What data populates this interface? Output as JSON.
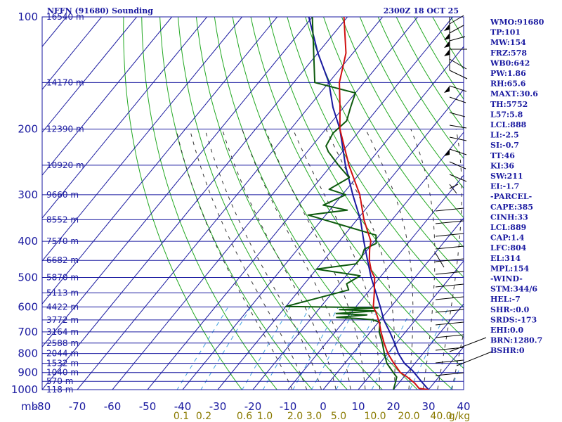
{
  "title_left": "NFFN (91680) Sounding",
  "title_right": "2300Z 18 OCT 25",
  "colors": {
    "grid": "#1a1aa0",
    "dry_adiabat": "#22a822",
    "moist_adiabat": "#333333",
    "mixing_ratio": "#40a0e0",
    "temperature": "#d01010",
    "dewpoint": "#0d5a0d",
    "parcel": "#1a1aa0",
    "axis_text": "#1a1aa0",
    "mixing_text": "#8a7a00"
  },
  "chart_data": {
    "type": "line",
    "title": "NFFN (91680) Sounding",
    "subtitle": "2300Z 18 OCT 25",
    "xlabel": "",
    "ylabel": "mb",
    "xlim": [
      -80,
      40
    ],
    "ylim": [
      1000,
      100
    ],
    "y_scale": "log",
    "grid": true,
    "pressure_ticks": [
      100,
      200,
      300,
      400,
      500,
      600,
      700,
      800,
      900,
      1000
    ],
    "temperature_ticks": [
      -80,
      -70,
      -60,
      -50,
      -40,
      -30,
      -20,
      -10,
      0,
      10,
      20,
      30,
      40
    ],
    "height_labels": [
      {
        "p": 100,
        "label": "16540 m"
      },
      {
        "p": 150,
        "label": "14170 m"
      },
      {
        "p": 200,
        "label": "12390 m"
      },
      {
        "p": 250,
        "label": "10920 m"
      },
      {
        "p": 300,
        "label": "9660 m"
      },
      {
        "p": 350,
        "label": "8552 m"
      },
      {
        "p": 400,
        "label": "7570 m"
      },
      {
        "p": 450,
        "label": "6682 m"
      },
      {
        "p": 500,
        "label": "5870 m"
      },
      {
        "p": 550,
        "label": "5113 m"
      },
      {
        "p": 600,
        "label": "4422 m"
      },
      {
        "p": 650,
        "label": "3772 m"
      },
      {
        "p": 700,
        "label": "3164 m"
      },
      {
        "p": 750,
        "label": "2588 m"
      },
      {
        "p": 800,
        "label": "2044 m"
      },
      {
        "p": 850,
        "label": "1532 m"
      },
      {
        "p": 900,
        "label": "1040 m"
      },
      {
        "p": 950,
        "label": "570 m"
      },
      {
        "p": 1000,
        "label": "118 m"
      }
    ],
    "mixing_ratio_labels": [
      "0.1",
      "0.2",
      "0.6",
      "1.0",
      "2.0",
      "3.0",
      "5.0",
      "10.0",
      "20.0",
      "40.0",
      "g/kg"
    ],
    "series": [
      {
        "name": "Temperature",
        "points": [
          [
            1000,
            30.0
          ],
          [
            992,
            27.0
          ],
          [
            960,
            24.5
          ],
          [
            925,
            21.0
          ],
          [
            900,
            18.0
          ],
          [
            850,
            14.0
          ],
          [
            800,
            10.0
          ],
          [
            750,
            6.5
          ],
          [
            700,
            3.0
          ],
          [
            660,
            0.3
          ],
          [
            620,
            -3.0
          ],
          [
            600,
            -5.0
          ],
          [
            550,
            -8.0
          ],
          [
            500,
            -11.5
          ],
          [
            480,
            -14.0
          ],
          [
            450,
            -17.0
          ],
          [
            420,
            -19.5
          ],
          [
            400,
            -21.0
          ],
          [
            350,
            -28.0
          ],
          [
            300,
            -35.0
          ],
          [
            250,
            -45.0
          ],
          [
            200,
            -56.0
          ],
          [
            175,
            -61.0
          ],
          [
            150,
            -67.0
          ],
          [
            125,
            -72.0
          ],
          [
            100,
            -81.0
          ]
        ]
      },
      {
        "name": "Dewpoint",
        "points": [
          [
            1000,
            20.0
          ],
          [
            960,
            19.0
          ],
          [
            925,
            18.0
          ],
          [
            900,
            16.0
          ],
          [
            850,
            12.0
          ],
          [
            800,
            9.0
          ],
          [
            750,
            6.0
          ],
          [
            700,
            2.5
          ],
          [
            660,
            0.5
          ],
          [
            650,
            -2.0
          ],
          [
            645,
            -6.0
          ],
          [
            640,
            -13.0
          ],
          [
            630,
            -5.0
          ],
          [
            625,
            -14.0
          ],
          [
            615,
            -3.5
          ],
          [
            610,
            -14.0
          ],
          [
            603,
            -3.5
          ],
          [
            598,
            -30.0
          ],
          [
            540,
            -16.0
          ],
          [
            520,
            -18.0
          ],
          [
            495,
            -16.0
          ],
          [
            475,
            -30.0
          ],
          [
            460,
            -20.0
          ],
          [
            440,
            -20.0
          ],
          [
            420,
            -21.0
          ],
          [
            405,
            -19.0
          ],
          [
            395,
            -20.0
          ],
          [
            385,
            -21.0
          ],
          [
            340,
            -45.0
          ],
          [
            330,
            -35.0
          ],
          [
            320,
            -43.0
          ],
          [
            300,
            -39.0
          ],
          [
            290,
            -45.0
          ],
          [
            270,
            -42.0
          ],
          [
            250,
            -48.0
          ],
          [
            230,
            -54.0
          ],
          [
            222,
            -56.0
          ],
          [
            205,
            -57.0
          ],
          [
            190,
            -56.0
          ],
          [
            175,
            -58.0
          ],
          [
            160,
            -60.0
          ],
          [
            150,
            -74.0
          ],
          [
            100,
            -90.0
          ]
        ]
      },
      {
        "name": "Parcel",
        "points": [
          [
            1000,
            30.0
          ],
          [
            950,
            26.0
          ],
          [
            889,
            21.0
          ],
          [
            850,
            17.0
          ],
          [
            800,
            13.0
          ],
          [
            750,
            9.5
          ],
          [
            700,
            5.5
          ],
          [
            650,
            1.0
          ],
          [
            600,
            -3.0
          ],
          [
            550,
            -7.5
          ],
          [
            500,
            -12.5
          ],
          [
            450,
            -17.5
          ],
          [
            400,
            -23.0
          ],
          [
            350,
            -29.0
          ],
          [
            300,
            -37.0
          ],
          [
            250,
            -46.0
          ],
          [
            200,
            -56.0
          ],
          [
            175,
            -63.0
          ],
          [
            150,
            -70.0
          ],
          [
            125,
            -80.0
          ],
          [
            100,
            -91.0
          ]
        ]
      }
    ]
  },
  "indices": [
    "WMO:91680",
    "TP:101",
    "MW:154",
    "FRZ:578",
    "WB0:642",
    "PW:1.86",
    "RH:65.6",
    "MAXT:30.6",
    "TH:5752",
    "L57:5.8",
    "LCL:888",
    "LI:-2.5",
    "SI:-0.7",
    "TT:46",
    "KI:36",
    "SW:211",
    "EI:-1.7",
    "-PARCEL-",
    "CAPE:385",
    "CINH:33",
    "LCL:889",
    "CAP:1.4",
    "LFC:804",
    "EL:314",
    "MPL:154",
    "-WIND-",
    "STM:344/6",
    "HEL:-7",
    "SHR-:0.0",
    "SRDS:-173",
    "EHI:0.0",
    "BRN:1280.7",
    "BSHR:0"
  ]
}
